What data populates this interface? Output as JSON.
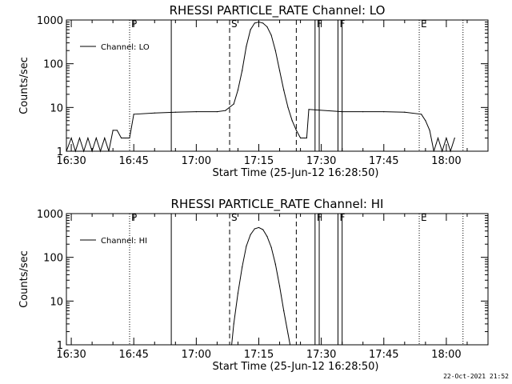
{
  "footer_timestamp": "22-Oct-2021 21:52",
  "chart_data": [
    {
      "type": "line",
      "title": "RHESSI PARTICLE_RATE Channel: LO",
      "xlabel": "Start Time (25-Jun-12 16:28:50)",
      "ylabel": "Counts/sec",
      "y_scale": "log",
      "ylim": [
        1,
        1000
      ],
      "xlim": [
        "16:28:50",
        "18:10"
      ],
      "x_ticks": [
        "16:30",
        "16:45",
        "17:00",
        "17:15",
        "17:30",
        "17:45",
        "18:00"
      ],
      "y_ticks": [
        "1",
        "10",
        "100",
        "1000"
      ],
      "legend": {
        "placement": "top-left",
        "entries": [
          "Channel: LO"
        ]
      },
      "markers": [
        {
          "label": "P",
          "time": "16:44:00",
          "style": "dotted"
        },
        {
          "label": "",
          "time": "16:54:00",
          "style": "solid"
        },
        {
          "label": "S",
          "time": "17:08:00",
          "style": "dashed"
        },
        {
          "label": "",
          "time": "17:24:00",
          "style": "dashed"
        },
        {
          "label": "F",
          "time": "17:28:30",
          "style": "solid"
        },
        {
          "label": "",
          "time": "17:29:30",
          "style": "solid"
        },
        {
          "label": "F",
          "time": "17:34:00",
          "style": "solid"
        },
        {
          "label": "",
          "time": "17:35:00",
          "style": "solid"
        },
        {
          "label": "E",
          "time": "17:53:30",
          "style": "dotted"
        },
        {
          "label": "",
          "time": "18:04:00",
          "style": "dotted"
        }
      ],
      "series": [
        {
          "x": [
            "16:28:50",
            "16:30",
            "16:31",
            "16:32",
            "16:33",
            "16:34",
            "16:35",
            "16:36",
            "16:37",
            "16:38",
            "16:39",
            "16:40",
            "16:41",
            "16:42",
            "16:43",
            "16:44",
            "16:45",
            "16:50",
            "16:55",
            "17:00",
            "17:05",
            "17:07",
            "17:09",
            "17:10",
            "17:11",
            "17:12",
            "17:13",
            "17:14",
            "17:15",
            "17:16",
            "17:17",
            "17:18",
            "17:19",
            "17:20",
            "17:21",
            "17:22",
            "17:23",
            "17:24",
            "17:25",
            "17:26",
            "17:26:30",
            "17:27",
            "17:35",
            "17:40",
            "17:45",
            "17:50",
            "17:54",
            "17:55",
            "17:56",
            "17:57",
            "17:58",
            "17:59",
            "18:00",
            "18:01",
            "18:02"
          ],
          "y": [
            1,
            2,
            1,
            2,
            1,
            2,
            1,
            2,
            1,
            2,
            1,
            3,
            3,
            2,
            2,
            2,
            7,
            7.5,
            7.8,
            8,
            8,
            8.5,
            12,
            25,
            70,
            250,
            600,
            850,
            900,
            850,
            700,
            450,
            200,
            70,
            25,
            10,
            5,
            3,
            2,
            2,
            2,
            9,
            8,
            8,
            8,
            7.8,
            7,
            5,
            3,
            1,
            2,
            1,
            2,
            1,
            2
          ]
        }
      ]
    },
    {
      "type": "line",
      "title": "RHESSI PARTICLE_RATE Channel: HI",
      "xlabel": "Start Time (25-Jun-12 16:28:50)",
      "ylabel": "Counts/sec",
      "y_scale": "log",
      "ylim": [
        1,
        1000
      ],
      "xlim": [
        "16:28:50",
        "18:10"
      ],
      "x_ticks": [
        "16:30",
        "16:45",
        "17:00",
        "17:15",
        "17:30",
        "17:45",
        "18:00"
      ],
      "y_ticks": [
        "1",
        "10",
        "100",
        "1000"
      ],
      "legend": {
        "placement": "top-left",
        "entries": [
          "Channel: HI"
        ]
      },
      "markers": [
        {
          "label": "P",
          "time": "16:44:00",
          "style": "dotted"
        },
        {
          "label": "",
          "time": "16:54:00",
          "style": "solid"
        },
        {
          "label": "S",
          "time": "17:08:00",
          "style": "dashed"
        },
        {
          "label": "",
          "time": "17:24:00",
          "style": "dashed"
        },
        {
          "label": "F",
          "time": "17:28:30",
          "style": "solid"
        },
        {
          "label": "",
          "time": "17:29:30",
          "style": "solid"
        },
        {
          "label": "F",
          "time": "17:34:00",
          "style": "solid"
        },
        {
          "label": "",
          "time": "17:35:00",
          "style": "solid"
        },
        {
          "label": "E",
          "time": "17:53:30",
          "style": "dotted"
        },
        {
          "label": "",
          "time": "18:04:00",
          "style": "dotted"
        }
      ],
      "series": [
        {
          "x": [
            "17:08:30",
            "17:09",
            "17:10",
            "17:11",
            "17:12",
            "17:13",
            "17:14",
            "17:15",
            "17:16",
            "17:17",
            "17:18",
            "17:19",
            "17:20",
            "17:21",
            "17:22",
            "17:22:30"
          ],
          "y": [
            1,
            3,
            15,
            60,
            180,
            330,
            450,
            480,
            430,
            300,
            170,
            70,
            22,
            6,
            1.8,
            1
          ]
        }
      ]
    }
  ]
}
